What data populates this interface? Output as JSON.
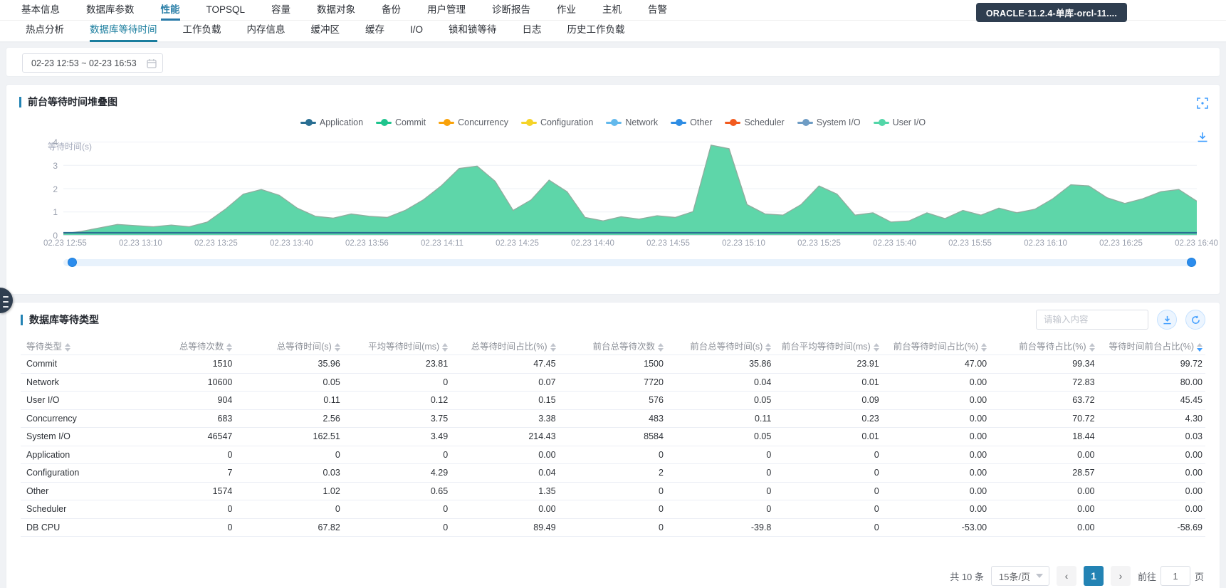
{
  "top_nav": {
    "items": [
      {
        "label": "基本信息",
        "active": false
      },
      {
        "label": "数据库参数",
        "active": false
      },
      {
        "label": "性能",
        "active": true
      },
      {
        "label": "TOPSQL",
        "active": false
      },
      {
        "label": "容量",
        "active": false
      },
      {
        "label": "数据对象",
        "active": false
      },
      {
        "label": "备份",
        "active": false
      },
      {
        "label": "用户管理",
        "active": false
      },
      {
        "label": "诊断报告",
        "active": false
      },
      {
        "label": "作业",
        "active": false
      },
      {
        "label": "主机",
        "active": false
      },
      {
        "label": "告警",
        "active": false
      }
    ],
    "db_badge": "ORACLE-11.2.4-单库-orcl-11...."
  },
  "sub_nav": {
    "items": [
      {
        "label": "热点分析",
        "active": false
      },
      {
        "label": "数据库等待时间",
        "active": true
      },
      {
        "label": "工作负载",
        "active": false
      },
      {
        "label": "内存信息",
        "active": false
      },
      {
        "label": "缓冲区",
        "active": false
      },
      {
        "label": "缓存",
        "active": false
      },
      {
        "label": "I/O",
        "active": false
      },
      {
        "label": "锁和锁等待",
        "active": false
      },
      {
        "label": "日志",
        "active": false
      },
      {
        "label": "历史工作负载",
        "active": false
      }
    ]
  },
  "toolbar": {
    "date_range": "02-23 12:53 ~ 02-23 16:53"
  },
  "chart_card": {
    "title": "前台等待时间堆叠图"
  },
  "chart_data": {
    "type": "area",
    "title": "前台等待时间堆叠图",
    "ylabel": "等待时间(s)",
    "ylim": [
      0,
      4
    ],
    "yticks": [
      4,
      3,
      2,
      1,
      0
    ],
    "grid": true,
    "legend_position": "top-center",
    "x_labels": [
      "02.23 12:55",
      "02.23 13:10",
      "02.23 13:25",
      "02.23 13:40",
      "02.23 13:56",
      "02.23 14:11",
      "02.23 14:25",
      "02.23 14:40",
      "02.23 14:55",
      "02.23 15:10",
      "02.23 15:25",
      "02.23 15:40",
      "02.23 15:55",
      "02.23 16:10",
      "02.23 16:25",
      "02.23 16:40"
    ],
    "legend": [
      {
        "name": "Application",
        "color": "#2a6f93"
      },
      {
        "name": "Commit",
        "color": "#1fc48d"
      },
      {
        "name": "Concurrency",
        "color": "#f9a20a"
      },
      {
        "name": "Configuration",
        "color": "#f5d328"
      },
      {
        "name": "Network",
        "color": "#63b9ec"
      },
      {
        "name": "Other",
        "color": "#2e8de4"
      },
      {
        "name": "Scheduler",
        "color": "#f25a1e"
      },
      {
        "name": "System I/O",
        "color": "#6e9cc4"
      },
      {
        "name": "User I/O",
        "color": "#53d6a8"
      }
    ],
    "series": [
      {
        "name": "Commit",
        "color": "#50d2a2",
        "values": [
          0.05,
          0.15,
          0.3,
          0.45,
          0.4,
          0.35,
          0.42,
          0.35,
          0.55,
          1.1,
          1.75,
          1.95,
          1.7,
          1.15,
          0.8,
          0.72,
          0.9,
          0.8,
          0.75,
          1.05,
          1.5,
          2.1,
          2.85,
          2.95,
          2.3,
          1.05,
          1.5,
          2.35,
          1.85,
          0.75,
          0.6,
          0.78,
          0.68,
          0.82,
          0.75,
          1.0,
          3.85,
          3.7,
          1.3,
          0.9,
          0.85,
          1.3,
          2.1,
          1.75,
          0.85,
          0.95,
          0.55,
          0.6,
          0.95,
          0.7,
          1.05,
          0.85,
          1.15,
          0.95,
          1.1,
          1.55,
          2.15,
          2.1,
          1.6,
          1.35,
          1.55,
          1.85,
          1.95,
          1.45
        ]
      },
      {
        "name": "Application",
        "color": "#2a6f93",
        "flat_value": 0.06
      }
    ]
  },
  "table_card": {
    "title": "数据库等待类型",
    "search_placeholder": "请输入内容",
    "columns": [
      {
        "label": "等待类型",
        "sorted": false
      },
      {
        "label": "总等待次数",
        "sorted": false
      },
      {
        "label": "总等待时间(s)",
        "sorted": false
      },
      {
        "label": "平均等待时间(ms)",
        "sorted": false
      },
      {
        "label": "总等待时间占比(%)",
        "sorted": false
      },
      {
        "label": "前台总等待次数",
        "sorted": false
      },
      {
        "label": "前台总等待时间(s)",
        "sorted": false
      },
      {
        "label": "前台平均等待时间(ms)",
        "sorted": false
      },
      {
        "label": "前台等待时间占比(%)",
        "sorted": false
      },
      {
        "label": "前台等待占比(%)",
        "sorted": false
      },
      {
        "label": "等待时间前台占比(%)",
        "sorted": true
      }
    ],
    "rows": [
      [
        "Commit",
        "1510",
        "35.96",
        "23.81",
        "47.45",
        "1500",
        "35.86",
        "23.91",
        "47.00",
        "99.34",
        "99.72"
      ],
      [
        "Network",
        "10600",
        "0.05",
        "0",
        "0.07",
        "7720",
        "0.04",
        "0.01",
        "0.00",
        "72.83",
        "80.00"
      ],
      [
        "User I/O",
        "904",
        "0.11",
        "0.12",
        "0.15",
        "576",
        "0.05",
        "0.09",
        "0.00",
        "63.72",
        "45.45"
      ],
      [
        "Concurrency",
        "683",
        "2.56",
        "3.75",
        "3.38",
        "483",
        "0.11",
        "0.23",
        "0.00",
        "70.72",
        "4.30"
      ],
      [
        "System I/O",
        "46547",
        "162.51",
        "3.49",
        "214.43",
        "8584",
        "0.05",
        "0.01",
        "0.00",
        "18.44",
        "0.03"
      ],
      [
        "Application",
        "0",
        "0",
        "0",
        "0.00",
        "0",
        "0",
        "0",
        "0.00",
        "0.00",
        "0.00"
      ],
      [
        "Configuration",
        "7",
        "0.03",
        "4.29",
        "0.04",
        "2",
        "0",
        "0",
        "0.00",
        "28.57",
        "0.00"
      ],
      [
        "Other",
        "1574",
        "1.02",
        "0.65",
        "1.35",
        "0",
        "0",
        "0",
        "0.00",
        "0.00",
        "0.00"
      ],
      [
        "Scheduler",
        "0",
        "0",
        "0",
        "0.00",
        "0",
        "0",
        "0",
        "0.00",
        "0.00",
        "0.00"
      ],
      [
        "DB CPU",
        "0",
        "67.82",
        "0",
        "89.49",
        "0",
        "-39.8",
        "0",
        "-53.00",
        "0.00",
        "-58.69"
      ]
    ]
  },
  "pagination": {
    "total_text": "共 10 条",
    "page_size": "15条/页",
    "current_page": "1",
    "goto_label": "前往",
    "goto_value": "1",
    "goto_unit": "页"
  }
}
